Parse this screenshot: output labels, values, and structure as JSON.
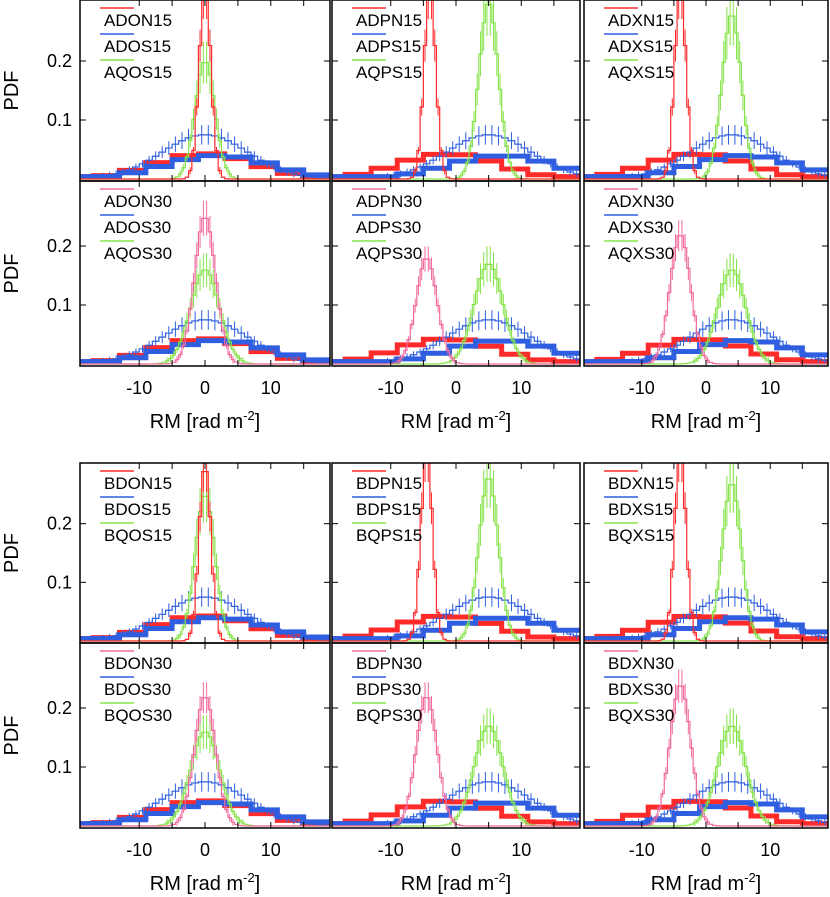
{
  "figure": {
    "y_axis_title": "PDF",
    "x_axis_title": "RM [rad m",
    "x_axis_title_superscript": "-2",
    "x_axis_title_close": "]",
    "x_tick_labels": [
      "-10",
      "0",
      "10"
    ],
    "y_tick_labels": [
      "0.1",
      "0.2"
    ],
    "colors": {
      "red": "#ff2b2b",
      "blue": "#2f5fe0",
      "green": "#86e34a",
      "pink": "#f06a9e",
      "frame": "#000000"
    }
  },
  "chart_data": [
    {
      "type": "line",
      "panel": "ADON15",
      "legend": [
        "ADON15",
        "ADOS15",
        "AQOS15"
      ],
      "xlim": [
        -19,
        19
      ],
      "ylim": [
        0,
        0.3
      ],
      "thin_series": [
        {
          "name": "ADON15",
          "center": 0,
          "peak": 0.32
        },
        {
          "name": "ADOS15",
          "center": 0,
          "peak": 0.075
        },
        {
          "name": "AQOS15",
          "center": 0,
          "peak": 0.2
        }
      ]
    },
    {
      "type": "line",
      "panel": "ADPN15",
      "legend": [
        "ADPN15",
        "ADPS15",
        "AQPS15"
      ],
      "xlim": [
        -19,
        19
      ],
      "ylim": [
        0,
        0.3
      ],
      "thin_series": [
        {
          "name": "ADPN15",
          "center": -4,
          "peak": 0.32
        },
        {
          "name": "ADPS15",
          "center": 5,
          "peak": 0.075
        },
        {
          "name": "AQPS15",
          "center": 5,
          "peak": 0.3
        }
      ]
    },
    {
      "type": "line",
      "panel": "ADXN15",
      "legend": [
        "ADXN15",
        "ADXS15",
        "AQXS15"
      ],
      "xlim": [
        -19,
        19
      ],
      "ylim": [
        0,
        0.3
      ],
      "thin_series": [
        {
          "name": "ADXN15",
          "center": -4,
          "peak": 0.32
        },
        {
          "name": "ADXS15",
          "center": 4,
          "peak": 0.075
        },
        {
          "name": "AQXS15",
          "center": 4,
          "peak": 0.28
        }
      ]
    },
    {
      "type": "line",
      "panel": "ADON30",
      "legend": [
        "ADON30",
        "ADOS30",
        "AQOS30"
      ],
      "xlim": [
        -19,
        19
      ],
      "ylim": [
        0,
        0.3
      ],
      "thin_series": [
        {
          "name": "ADON30",
          "center": 0,
          "peak": 0.25
        },
        {
          "name": "ADOS30",
          "center": 0,
          "peak": 0.075
        },
        {
          "name": "AQOS30",
          "center": 0,
          "peak": 0.16
        }
      ]
    },
    {
      "type": "line",
      "panel": "ADPN30",
      "legend": [
        "ADPN30",
        "ADPS30",
        "AQPS30"
      ],
      "xlim": [
        -19,
        19
      ],
      "ylim": [
        0,
        0.3
      ],
      "thin_series": [
        {
          "name": "ADPN30",
          "center": -4.5,
          "peak": 0.18
        },
        {
          "name": "ADPS30",
          "center": 5,
          "peak": 0.075
        },
        {
          "name": "AQPS30",
          "center": 5,
          "peak": 0.17
        }
      ]
    },
    {
      "type": "line",
      "panel": "ADXN30",
      "legend": [
        "ADXN30",
        "ADXS30",
        "AQXS30"
      ],
      "xlim": [
        -19,
        19
      ],
      "ylim": [
        0,
        0.3
      ],
      "thin_series": [
        {
          "name": "ADXN30",
          "center": -4,
          "peak": 0.22
        },
        {
          "name": "ADXS30",
          "center": 4,
          "peak": 0.075
        },
        {
          "name": "AQXS30",
          "center": 4,
          "peak": 0.16
        }
      ]
    },
    {
      "type": "line",
      "panel": "BDON15",
      "legend": [
        "BDON15",
        "BDOS15",
        "BQOS15"
      ],
      "xlim": [
        -19,
        19
      ],
      "ylim": [
        0,
        0.3
      ],
      "thin_series": [
        {
          "name": "BDON15",
          "center": 0,
          "peak": 0.3
        },
        {
          "name": "BDOS15",
          "center": 0,
          "peak": 0.075
        },
        {
          "name": "BQOS15",
          "center": 0,
          "peak": 0.25
        }
      ]
    },
    {
      "type": "line",
      "panel": "BDPN15",
      "legend": [
        "BDPN15",
        "BDPS15",
        "BQPS15"
      ],
      "xlim": [
        -19,
        19
      ],
      "ylim": [
        0,
        0.3
      ],
      "thin_series": [
        {
          "name": "BDPN15",
          "center": -4.5,
          "peak": 0.32
        },
        {
          "name": "BDPS15",
          "center": 5,
          "peak": 0.075
        },
        {
          "name": "BQPS15",
          "center": 5,
          "peak": 0.28
        }
      ]
    },
    {
      "type": "line",
      "panel": "BDXN15",
      "legend": [
        "BDXN15",
        "BDXS15",
        "BQXS15"
      ],
      "xlim": [
        -19,
        19
      ],
      "ylim": [
        0,
        0.3
      ],
      "thin_series": [
        {
          "name": "BDXN15",
          "center": -4,
          "peak": 0.32
        },
        {
          "name": "BDXS15",
          "center": 4,
          "peak": 0.075
        },
        {
          "name": "BQXS15",
          "center": 4,
          "peak": 0.27
        }
      ]
    },
    {
      "type": "line",
      "panel": "BDON30",
      "legend": [
        "BDON30",
        "BDOS30",
        "BQOS30"
      ],
      "xlim": [
        -19,
        19
      ],
      "ylim": [
        0,
        0.3
      ],
      "thin_series": [
        {
          "name": "BDON30",
          "center": 0,
          "peak": 0.22
        },
        {
          "name": "BDOS30",
          "center": 0,
          "peak": 0.075
        },
        {
          "name": "BQOS30",
          "center": 0,
          "peak": 0.16
        }
      ]
    },
    {
      "type": "line",
      "panel": "BDPN30",
      "legend": [
        "BDPN30",
        "BDPS30",
        "BQPS30"
      ],
      "xlim": [
        -19,
        19
      ],
      "ylim": [
        0,
        0.3
      ],
      "thin_series": [
        {
          "name": "BDPN30",
          "center": -4.5,
          "peak": 0.22
        },
        {
          "name": "BDPS30",
          "center": 5,
          "peak": 0.075
        },
        {
          "name": "BQPS30",
          "center": 5,
          "peak": 0.17
        }
      ]
    },
    {
      "type": "line",
      "panel": "BDXN30",
      "legend": [
        "BDXN30",
        "BDXS30",
        "BQXS30"
      ],
      "xlim": [
        -19,
        19
      ],
      "ylim": [
        0,
        0.3
      ],
      "thin_series": [
        {
          "name": "BDXN30",
          "center": -4,
          "peak": 0.24
        },
        {
          "name": "BDXS30",
          "center": 4,
          "peak": 0.075
        },
        {
          "name": "BQXS30",
          "center": 4,
          "peak": 0.17
        }
      ]
    }
  ]
}
